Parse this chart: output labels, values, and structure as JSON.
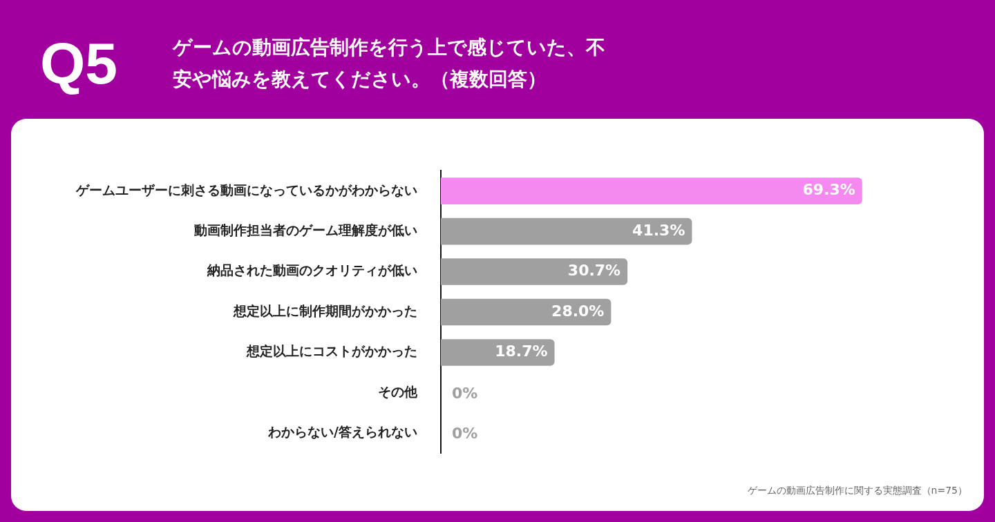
{
  "chart_data": {
    "type": "bar",
    "orientation": "horizontal",
    "subtitle": "Q5",
    "title": "ゲームの動画広告制作を行う上で感じていた、不安や悩みを教えてください。（複数回答）",
    "categories": [
      "ゲームユーザーに刺さる動画になっているかがわからない",
      "動画制作担当者のゲーム理解度が低い",
      "納品された動画のクオリティが低い",
      "想定以上に制作期間がかかった",
      "想定以上にコストがかかった",
      "その他",
      "わからない/答えられない"
    ],
    "values": [
      69.3,
      41.3,
      30.7,
      28.0,
      18.7,
      0,
      0
    ],
    "value_labels": [
      "69.3%",
      "41.3%",
      "30.7%",
      "28.0%",
      "18.7%",
      "0%",
      "0%"
    ],
    "colors": [
      "#f48af0",
      "#a0a0a0",
      "#a0a0a0",
      "#a0a0a0",
      "#a0a0a0",
      "#a0a0a0",
      "#a0a0a0"
    ],
    "tick_labels": "y",
    "grid": false,
    "legend": false,
    "annotations": [
      "ゲームの動画広告制作に関する実態調査（n=75）"
    ]
  }
}
